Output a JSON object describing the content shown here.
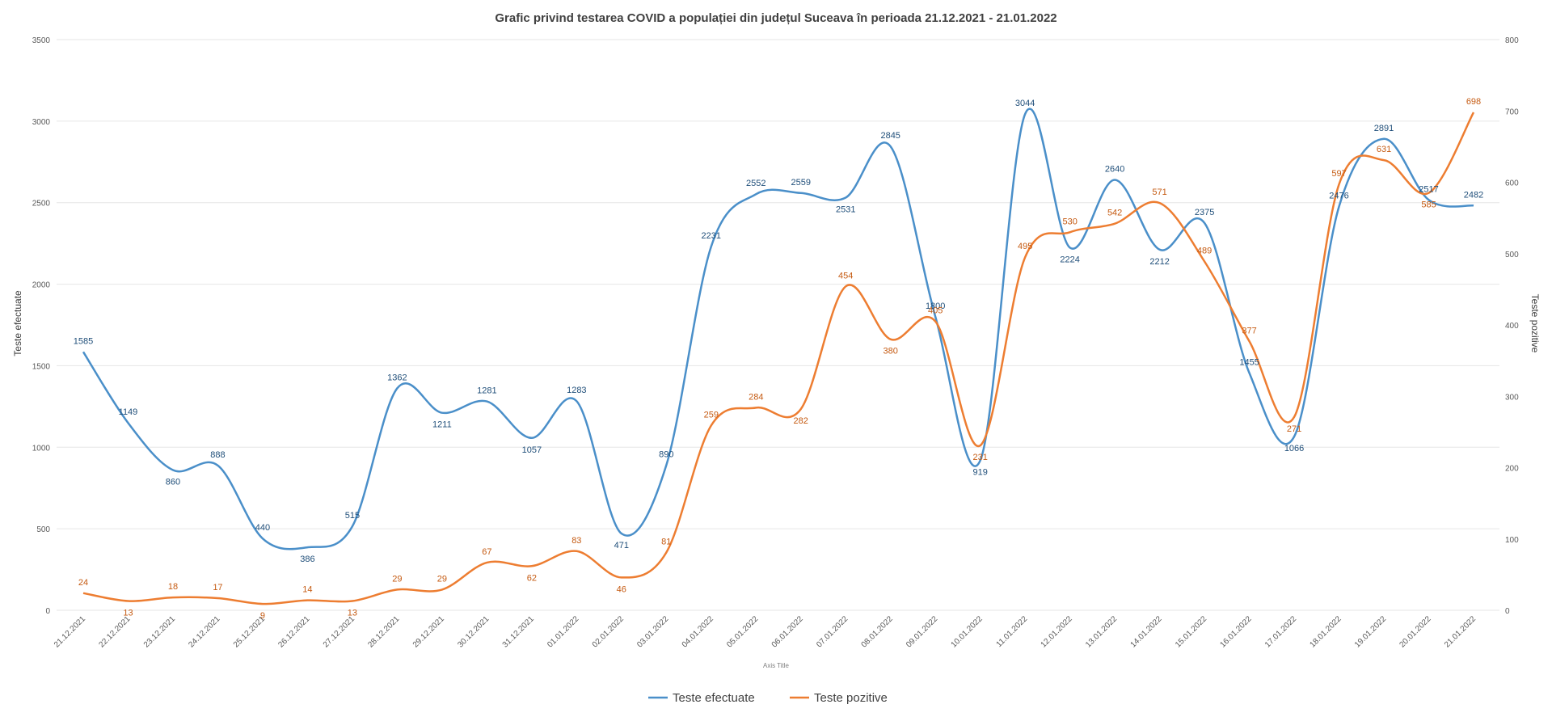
{
  "chart_data": {
    "type": "line",
    "title": "Grafic privind testarea COVID a populației din județul Suceava în perioada 21.12.2021 - 21.01.2022",
    "xlabel": "Axis Title",
    "ylabel": "Teste efectuate",
    "y2label": "Teste pozitive",
    "ylim": [
      0,
      3500
    ],
    "yticks": [
      0,
      500,
      1000,
      1500,
      2000,
      2500,
      3000,
      3500
    ],
    "y2lim": [
      0,
      800
    ],
    "y2ticks": [
      0,
      100,
      200,
      300,
      400,
      500,
      600,
      700,
      800
    ],
    "grid": true,
    "legend_position": "bottom",
    "categories": [
      "21.12.2021",
      "22.12.2021",
      "23.12.2021",
      "24.12.2021",
      "25.12.2021",
      "26.12.2021",
      "27.12.2021",
      "28.12.2021",
      "29.12.2021",
      "30.12.2021",
      "31.12.2021",
      "01.01.2022",
      "02.01.2022",
      "03.01.2022",
      "04.01.2022",
      "05.01.2022",
      "06.01.2022",
      "07.01.2022",
      "08.01.2022",
      "09.01.2022",
      "10.01.2022",
      "11.01.2022",
      "12.01.2022",
      "13.01.2022",
      "14.01.2022",
      "15.01.2022",
      "16.01.2022",
      "17.01.2022",
      "18.01.2022",
      "19.01.2022",
      "20.01.2022",
      "21.01.2022"
    ],
    "series": [
      {
        "name": "Teste efectuate",
        "axis": "left",
        "color": "#4a8fc9",
        "labels": [
          "1585",
          "1149",
          "860",
          "888",
          "440",
          "386",
          "515",
          "1362",
          "1211",
          "1281",
          "1057",
          "1283",
          "471",
          "890",
          "2231",
          "2552",
          "2559",
          "2531",
          "2845",
          "1800",
          "919",
          "3044",
          "2224",
          "2640",
          "2212",
          "2375",
          "1455",
          "1066",
          "2476",
          "2891",
          "2517",
          "2482"
        ],
        "values": [
          1585,
          1149,
          860,
          888,
          440,
          386,
          515,
          1362,
          1211,
          1281,
          1057,
          1283,
          471,
          890,
          2231,
          2552,
          2559,
          2531,
          2845,
          1800,
          919,
          3044,
          2224,
          2640,
          2212,
          2375,
          1455,
          1066,
          2476,
          2891,
          2517,
          2482
        ]
      },
      {
        "name": "Teste pozitive",
        "axis": "right",
        "color": "#ed7d31",
        "labels": [
          "24",
          "13",
          "18",
          "17",
          "9",
          "14",
          "13",
          "29",
          "29",
          "67",
          "62",
          "83",
          "46",
          "81",
          "259",
          "284",
          "282",
          "454",
          "380",
          "405",
          "231",
          "495",
          "530",
          "542",
          "571",
          "489",
          "377",
          "271",
          "597",
          "631",
          "585",
          "698"
        ],
        "values": [
          24,
          13,
          18,
          17,
          9,
          14,
          13,
          29,
          29,
          67,
          62,
          83,
          46,
          81,
          259,
          284,
          282,
          454,
          380,
          405,
          231,
          495,
          530,
          542,
          571,
          489,
          377,
          271,
          597,
          631,
          585,
          698
        ]
      }
    ]
  }
}
